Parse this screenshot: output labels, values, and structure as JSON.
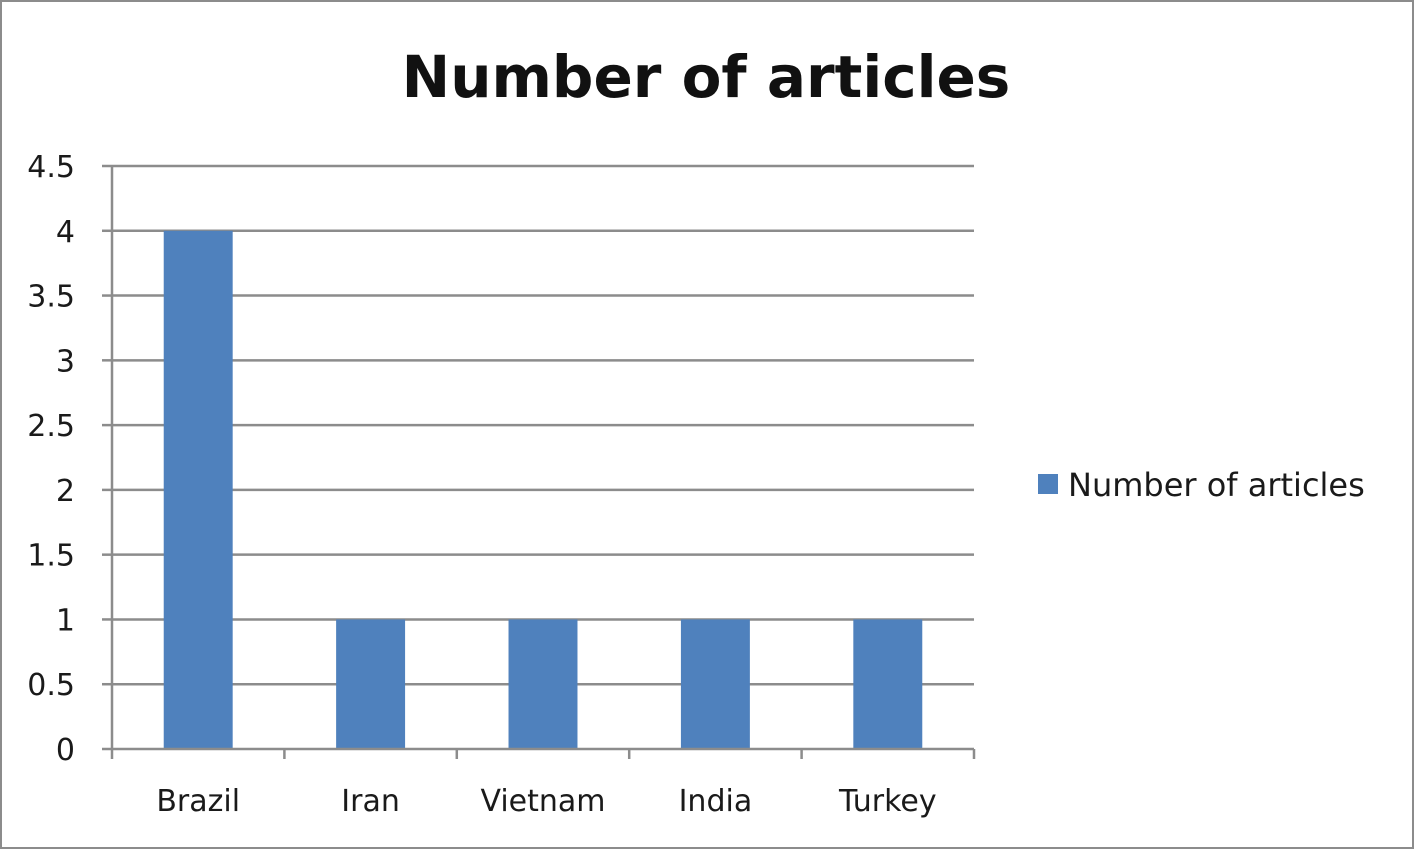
{
  "chart_data": {
    "type": "bar",
    "title": "Number of articles",
    "xlabel": "",
    "ylabel": "",
    "categories": [
      "Brazil",
      "Iran",
      "Vietnam",
      "India",
      "Turkey"
    ],
    "series": [
      {
        "name": "Number of articles",
        "values": [
          4,
          1,
          1,
          1,
          1
        ],
        "color": "#4f81bd"
      }
    ],
    "yticks": [
      "0",
      "0.5",
      "1",
      "1.5",
      "2",
      "2.5",
      "3",
      "3.5",
      "4",
      "4.5"
    ],
    "ylim": [
      0,
      4.5
    ],
    "grid": true,
    "legend_position": "right",
    "gridline_color": "#8c8c8c",
    "axis_color": "#8c8c8c"
  }
}
